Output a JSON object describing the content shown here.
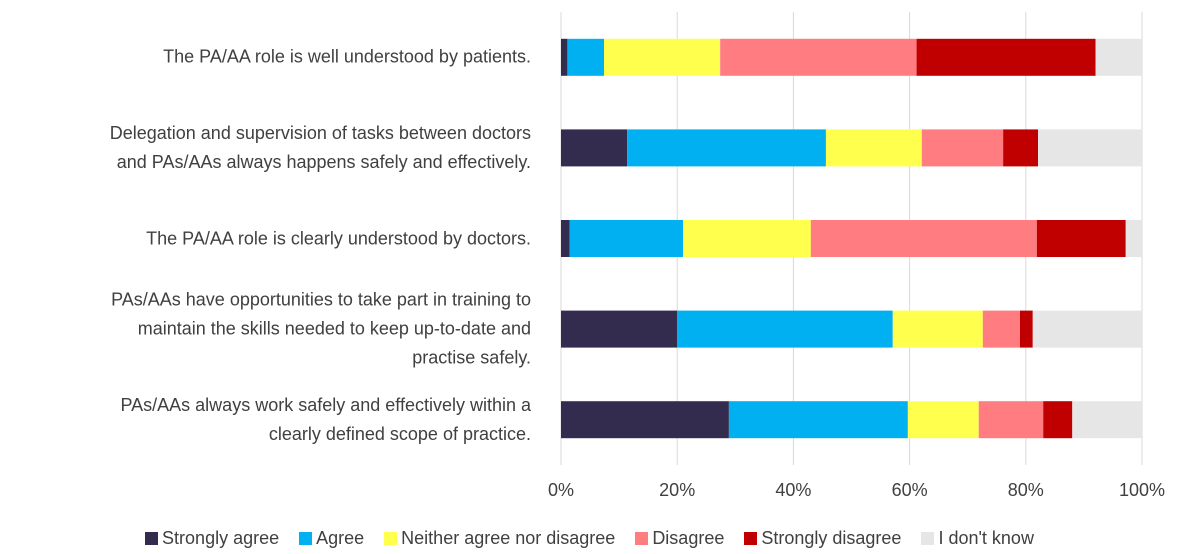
{
  "chart_data": {
    "type": "stacked_barh",
    "categories": [
      "The PA/AA role is well understood by patients.",
      "Delegation and supervision of tasks between doctors\nand PAs/AAs always happens safely and effectively.",
      "The PA/AA role is clearly understood by doctors.",
      "PAs/AAs have opportunities to take part in training to\nmaintain the skills needed to keep up-to-date and\npractise safely.",
      "PAs/AAs always work safely and effectively within a\nclearly defined scope of practice."
    ],
    "series": [
      {
        "name": "Strongly agree",
        "color": "#332c4f",
        "values": [
          1.1,
          11.4,
          1.5,
          20.0,
          28.9
        ]
      },
      {
        "name": "Agree",
        "color": "#00b0f0",
        "values": [
          6.3,
          34.2,
          19.5,
          37.1,
          30.8
        ]
      },
      {
        "name": "Neither agree nor disagree",
        "color": "#ffff4d",
        "values": [
          20.0,
          16.5,
          22.0,
          15.5,
          12.2
        ]
      },
      {
        "name": "Disagree",
        "color": "#ff7c80",
        "values": [
          33.8,
          14.0,
          38.9,
          6.4,
          11.1
        ]
      },
      {
        "name": "Strongly disagree",
        "color": "#c00000",
        "values": [
          30.8,
          6.0,
          15.3,
          2.2,
          5.0
        ]
      },
      {
        "name": "I don't know",
        "color": "#e7e6e6",
        "values": [
          8.0,
          17.9,
          2.8,
          18.8,
          12.0
        ]
      }
    ],
    "xlim": [
      0,
      100
    ],
    "xticks": [
      {
        "value": 0,
        "label": "0%"
      },
      {
        "value": 20,
        "label": "20%"
      },
      {
        "value": 40,
        "label": "40%"
      },
      {
        "value": 60,
        "label": "60%"
      },
      {
        "value": 80,
        "label": "80%"
      },
      {
        "value": 100,
        "label": "100%"
      }
    ],
    "grid": true,
    "legend": "bottom"
  }
}
